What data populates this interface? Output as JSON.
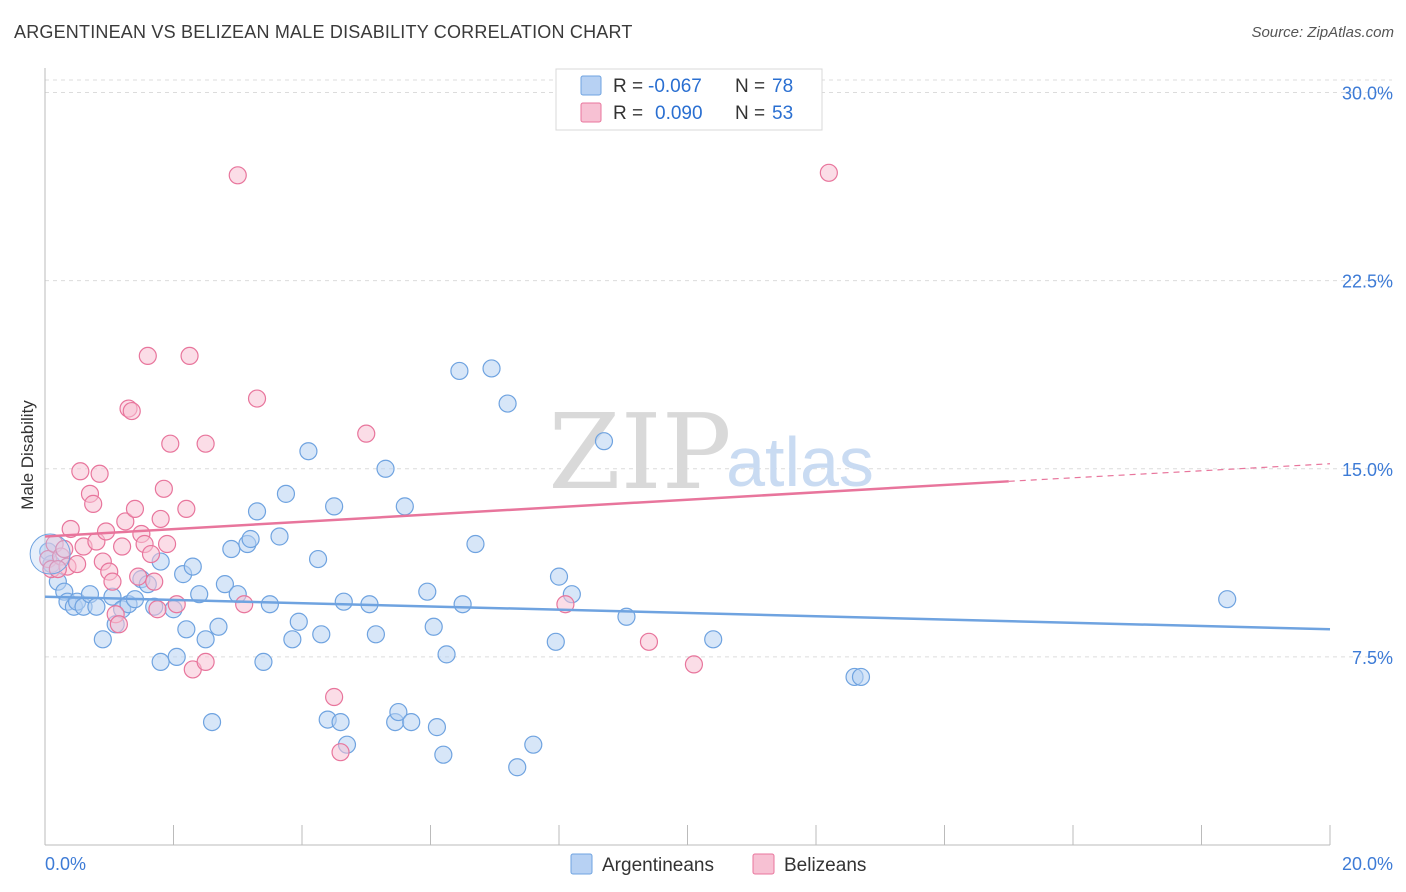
{
  "header": {
    "title": "ARGENTINEAN VS BELIZEAN MALE DISABILITY CORRELATION CHART",
    "source": "Source: ZipAtlas.com"
  },
  "watermark": {
    "zip": "ZIP",
    "atlas": "atlas"
  },
  "stats_box": {
    "rows": [
      {
        "r_label": "R =",
        "r_value": "-0.067",
        "n_label": "N =",
        "n_value": "78",
        "color": "#a9c8f0"
      },
      {
        "r_label": "R =",
        "r_value": "0.090",
        "n_label": "N =",
        "n_value": "53",
        "color": "#f6b6cb"
      }
    ]
  },
  "chart_data": {
    "type": "scatter",
    "title": "ARGENTINEAN VS BELIZEAN MALE DISABILITY CORRELATION CHART",
    "xlabel": "",
    "ylabel": "Male Disability",
    "xlim": [
      0,
      20
    ],
    "ylim": [
      0,
      30.5
    ],
    "x_tick_labels": [
      "0.0%",
      "20.0%"
    ],
    "y_ticks": [
      7.5,
      15.0,
      22.5,
      30.0
    ],
    "y_tick_labels": [
      "7.5%",
      "15.0%",
      "22.5%",
      "30.0%"
    ],
    "grid": true,
    "legend": [
      "Argentineans",
      "Belizeans"
    ],
    "series": [
      {
        "name": "Argentineans",
        "color": "#6fa3e0",
        "fill": "#b7d1f3",
        "trend": {
          "x0": 0,
          "y0": 9.9,
          "x1": 20,
          "y1": 8.6
        },
        "points": [
          [
            0.05,
            11.7
          ],
          [
            0.1,
            11.2
          ],
          [
            0.2,
            10.5
          ],
          [
            0.3,
            10.1
          ],
          [
            0.35,
            9.7
          ],
          [
            0.45,
            9.5
          ],
          [
            0.5,
            9.7
          ],
          [
            0.6,
            9.5
          ],
          [
            0.7,
            10.0
          ],
          [
            0.8,
            9.5
          ],
          [
            0.9,
            8.2
          ],
          [
            1.05,
            9.9
          ],
          [
            1.1,
            8.8
          ],
          [
            1.2,
            9.4
          ],
          [
            1.3,
            9.6
          ],
          [
            1.4,
            9.8
          ],
          [
            1.5,
            10.6
          ],
          [
            1.6,
            10.4
          ],
          [
            1.7,
            9.5
          ],
          [
            1.8,
            11.3
          ],
          [
            1.8,
            7.3
          ],
          [
            2.0,
            9.4
          ],
          [
            2.05,
            7.5
          ],
          [
            2.15,
            10.8
          ],
          [
            2.2,
            8.6
          ],
          [
            2.3,
            11.1
          ],
          [
            2.4,
            10.0
          ],
          [
            2.5,
            8.2
          ],
          [
            2.6,
            4.9
          ],
          [
            2.7,
            8.7
          ],
          [
            2.8,
            10.4
          ],
          [
            2.9,
            11.8
          ],
          [
            3.0,
            10.0
          ],
          [
            3.15,
            12.0
          ],
          [
            3.2,
            12.2
          ],
          [
            3.3,
            13.3
          ],
          [
            3.4,
            7.3
          ],
          [
            3.5,
            9.6
          ],
          [
            3.65,
            12.3
          ],
          [
            3.75,
            14.0
          ],
          [
            3.85,
            8.2
          ],
          [
            3.95,
            8.9
          ],
          [
            4.1,
            15.7
          ],
          [
            4.25,
            11.4
          ],
          [
            4.3,
            8.4
          ],
          [
            4.5,
            13.5
          ],
          [
            4.4,
            5.0
          ],
          [
            4.6,
            4.9
          ],
          [
            4.65,
            9.7
          ],
          [
            4.7,
            4.0
          ],
          [
            5.05,
            9.6
          ],
          [
            5.15,
            8.4
          ],
          [
            5.3,
            15.0
          ],
          [
            5.45,
            4.9
          ],
          [
            5.5,
            5.3
          ],
          [
            5.6,
            13.5
          ],
          [
            5.7,
            4.9
          ],
          [
            5.95,
            10.1
          ],
          [
            6.05,
            8.7
          ],
          [
            6.1,
            4.7
          ],
          [
            6.2,
            3.6
          ],
          [
            6.25,
            7.6
          ],
          [
            6.5,
            9.6
          ],
          [
            6.45,
            18.9
          ],
          [
            6.95,
            19.0
          ],
          [
            6.7,
            12.0
          ],
          [
            7.2,
            17.6
          ],
          [
            7.35,
            3.1
          ],
          [
            7.6,
            4.0
          ],
          [
            7.95,
            8.1
          ],
          [
            8.0,
            10.7
          ],
          [
            8.2,
            10.0
          ],
          [
            8.7,
            16.1
          ],
          [
            9.05,
            9.1
          ],
          [
            10.4,
            8.2
          ],
          [
            12.6,
            6.7
          ],
          [
            12.7,
            6.7
          ],
          [
            18.4,
            9.8
          ]
        ]
      },
      {
        "name": "Belizeans",
        "color": "#e8759c",
        "fill": "#f7c1d3",
        "trend": {
          "x0": 0,
          "y0": 12.3,
          "x1": 15.0,
          "y1": 14.5
        },
        "trend_ext": {
          "x0": 15.0,
          "y0": 14.5,
          "x1": 20,
          "y1": 15.2
        },
        "points": [
          [
            0.05,
            11.4
          ],
          [
            0.1,
            11.0
          ],
          [
            0.15,
            12.0
          ],
          [
            0.25,
            11.5
          ],
          [
            0.3,
            11.8
          ],
          [
            0.35,
            11.1
          ],
          [
            0.4,
            12.6
          ],
          [
            0.5,
            11.2
          ],
          [
            0.55,
            14.9
          ],
          [
            0.6,
            11.9
          ],
          [
            0.7,
            14.0
          ],
          [
            0.75,
            13.6
          ],
          [
            0.8,
            12.1
          ],
          [
            0.85,
            14.8
          ],
          [
            0.9,
            11.3
          ],
          [
            0.95,
            12.5
          ],
          [
            1.0,
            10.9
          ],
          [
            1.05,
            10.5
          ],
          [
            1.1,
            9.2
          ],
          [
            1.15,
            8.8
          ],
          [
            1.2,
            11.9
          ],
          [
            1.25,
            12.9
          ],
          [
            1.3,
            17.4
          ],
          [
            1.35,
            17.3
          ],
          [
            1.4,
            13.4
          ],
          [
            1.45,
            10.7
          ],
          [
            1.5,
            12.4
          ],
          [
            1.55,
            12.0
          ],
          [
            1.6,
            19.5
          ],
          [
            1.65,
            11.6
          ],
          [
            1.7,
            10.5
          ],
          [
            1.75,
            9.4
          ],
          [
            1.8,
            13.0
          ],
          [
            1.85,
            14.2
          ],
          [
            1.9,
            12.0
          ],
          [
            1.95,
            16.0
          ],
          [
            2.05,
            9.6
          ],
          [
            2.2,
            13.4
          ],
          [
            2.25,
            19.5
          ],
          [
            2.3,
            7.0
          ],
          [
            2.5,
            16.0
          ],
          [
            2.5,
            7.3
          ],
          [
            3.0,
            26.7
          ],
          [
            3.1,
            9.6
          ],
          [
            3.3,
            17.8
          ],
          [
            4.5,
            5.9
          ],
          [
            4.6,
            3.7
          ],
          [
            5.0,
            16.4
          ],
          [
            8.1,
            9.6
          ],
          [
            9.4,
            8.1
          ],
          [
            10.1,
            7.2
          ],
          [
            12.2,
            26.8
          ],
          [
            0.2,
            11.0
          ]
        ]
      }
    ]
  },
  "legend_labels": [
    "Argentineans",
    "Belizeans"
  ],
  "axis": {
    "x_min_label": "0.0%",
    "x_max_label": "20.0%"
  }
}
